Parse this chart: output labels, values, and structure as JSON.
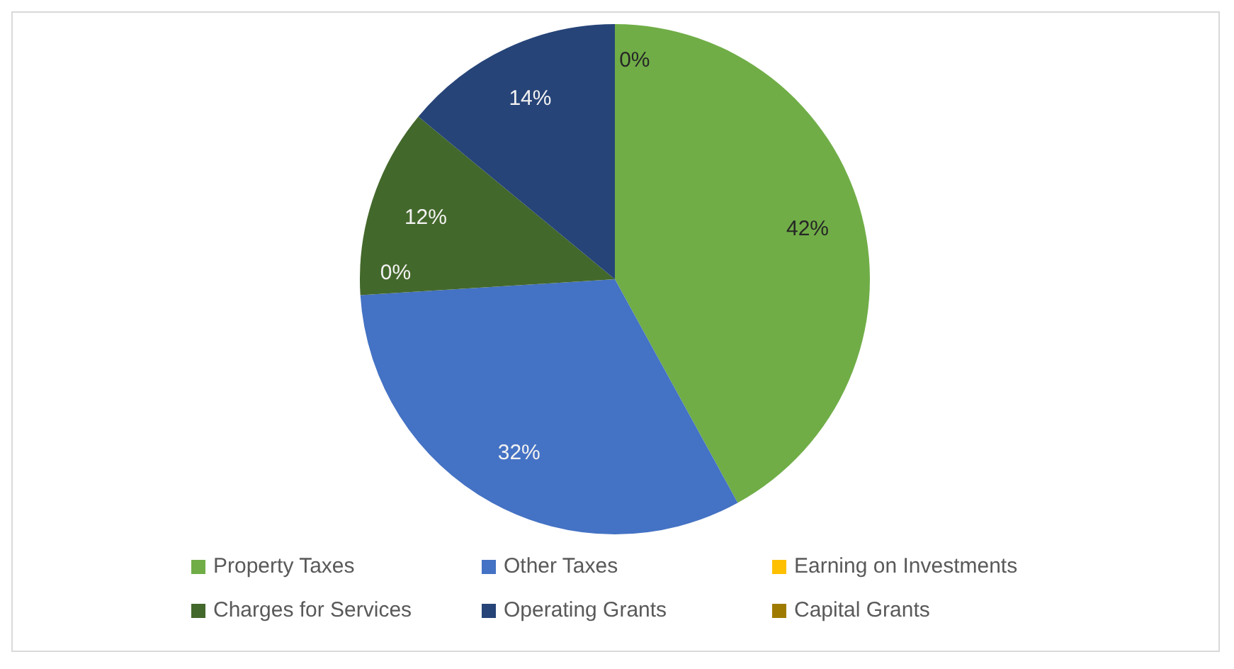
{
  "chart_data": {
    "type": "pie",
    "categories": [
      "Property Taxes",
      "Other Taxes",
      "Earning on Investments",
      "Charges for Services",
      "Operating Grants",
      "Capital Grants"
    ],
    "values": [
      42,
      32,
      0,
      12,
      14,
      0
    ],
    "colors": [
      "#70ad47",
      "#4472c4",
      "#ffc000",
      "#43682b",
      "#264478",
      "#9e7b00"
    ],
    "value_labels": [
      "42%",
      "32%",
      "0%",
      "12%",
      "14%",
      "0%"
    ],
    "legend": "bottom"
  }
}
